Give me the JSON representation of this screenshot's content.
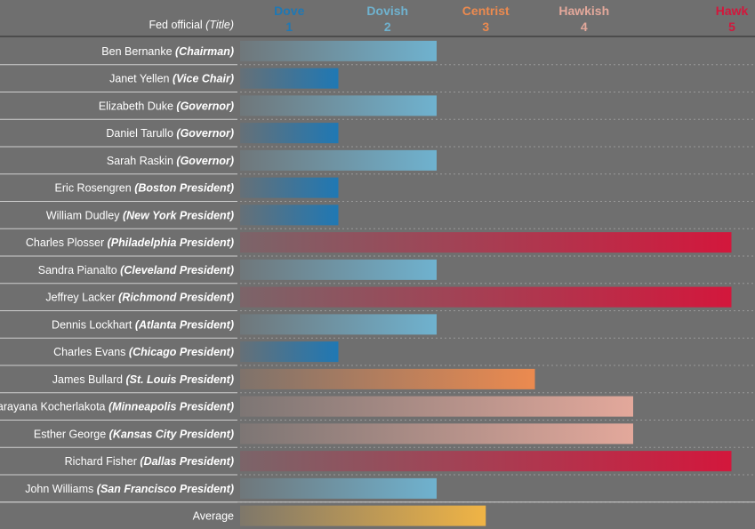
{
  "header": {
    "label_text": "Fed official",
    "label_title": "(Title)"
  },
  "chart_data": {
    "type": "bar",
    "orientation": "horizontal",
    "title": "",
    "xlabel": "",
    "ylabel": "Fed official (Title)",
    "xlim": [
      0,
      5
    ],
    "scale": [
      {
        "value": 1,
        "label": "Dove",
        "color": "#1f78b4"
      },
      {
        "value": 2,
        "label": "Dovish",
        "color": "#6fb2cf"
      },
      {
        "value": 3,
        "label": "Centrist",
        "color": "#ec8a4f"
      },
      {
        "value": 4,
        "label": "Hawkish",
        "color": "#e3a89b"
      },
      {
        "value": 5,
        "label": "Hawk",
        "color": "#d3173c"
      }
    ],
    "officials": [
      {
        "name": "Ben Bernanke",
        "title": "(Chairman)",
        "value": 2
      },
      {
        "name": "Janet Yellen",
        "title": "(Vice Chair)",
        "value": 1
      },
      {
        "name": "Elizabeth Duke",
        "title": "(Governor)",
        "value": 2
      },
      {
        "name": "Daniel Tarullo",
        "title": "(Governor)",
        "value": 1
      },
      {
        "name": "Sarah Raskin",
        "title": "(Governor)",
        "value": 2
      },
      {
        "name": "Eric Rosengren",
        "title": "(Boston President)",
        "value": 1
      },
      {
        "name": "William Dudley",
        "title": "(New York President)",
        "value": 1
      },
      {
        "name": "Charles Plosser",
        "title": "(Philadelphia President)",
        "value": 5
      },
      {
        "name": "Sandra Pianalto",
        "title": "(Cleveland President)",
        "value": 2
      },
      {
        "name": "Jeffrey Lacker",
        "title": "(Richmond President)",
        "value": 5
      },
      {
        "name": "Dennis Lockhart",
        "title": "(Atlanta President)",
        "value": 2
      },
      {
        "name": "Charles Evans",
        "title": "(Chicago President)",
        "value": 1
      },
      {
        "name": "James Bullard",
        "title": "(St. Louis President)",
        "value": 3
      },
      {
        "name": "Narayana Kocherlakota",
        "title": "(Minneapolis President)",
        "value": 4
      },
      {
        "name": "Esther George",
        "title": "(Kansas City President)",
        "value": 4
      },
      {
        "name": "Richard Fisher",
        "title": "(Dallas President)",
        "value": 5
      },
      {
        "name": "John Williams",
        "title": "(San Francisco President)",
        "value": 2
      }
    ],
    "average": {
      "name": "Average",
      "title": "",
      "value": 2.5,
      "color": "#f0b445"
    }
  }
}
